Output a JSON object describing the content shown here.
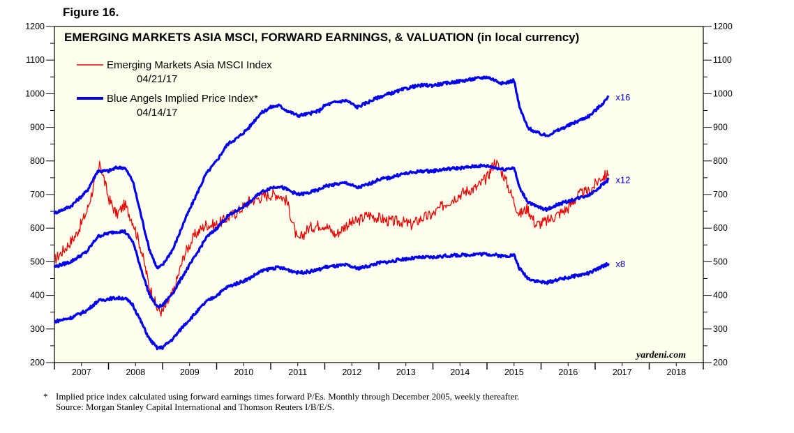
{
  "figure_label": "Figure 16.",
  "footnote": {
    "star": "*",
    "line1": "Implied price index calculated using forward earnings times forward P/Es. Monthly through December 2005, weekly thereafter.",
    "line2": "Source: Morgan Stanley Capital International and Thomson Reuters I/B/E/S."
  },
  "colors": {
    "plot_background": "#ffffee",
    "index_line": "#ee0000",
    "implied_lines": "#0000ee"
  },
  "chart_data": {
    "type": "line",
    "title": "EMERGING MARKETS ASIA MSCI, FORWARD EARNINGS, & VALUATION (in local currency)",
    "watermark": "yardeni.com",
    "ylim": [
      200,
      1200
    ],
    "y_ticks": [
      "200",
      "300",
      "400",
      "500",
      "600",
      "700",
      "800",
      "900",
      "1000",
      "1100",
      "1200"
    ],
    "xlim": [
      2007,
      2019
    ],
    "x_tick_labels": [
      "2007",
      "2008",
      "2009",
      "2010",
      "2011",
      "2012",
      "2013",
      "2014",
      "2015",
      "2016",
      "2017",
      "2018"
    ],
    "legend": [
      {
        "label": "Emerging Markets Asia MSCI Index",
        "date": "04/21/17",
        "color": "#ee0000"
      },
      {
        "label": "Blue Angels Implied Price Index*",
        "date": "04/14/17",
        "color": "#0000ee"
      }
    ],
    "series": [
      {
        "name": "Emerging Markets Asia MSCI Index",
        "color": "#ee0000",
        "x": [
          2007.0,
          2007.2,
          2007.4,
          2007.6,
          2007.75,
          2007.85,
          2008.0,
          2008.15,
          2008.3,
          2008.45,
          2008.6,
          2008.75,
          2008.9,
          2009.0,
          2009.2,
          2009.4,
          2009.6,
          2009.8,
          2010.0,
          2010.2,
          2010.4,
          2010.6,
          2010.8,
          2011.0,
          2011.15,
          2011.3,
          2011.5,
          2011.7,
          2011.9,
          2012.0,
          2012.2,
          2012.4,
          2012.6,
          2012.8,
          2013.0,
          2013.2,
          2013.4,
          2013.6,
          2013.8,
          2014.0,
          2014.2,
          2014.4,
          2014.6,
          2014.8,
          2015.0,
          2015.15,
          2015.3,
          2015.5,
          2015.6,
          2015.75,
          2015.9,
          2016.1,
          2016.3,
          2016.5,
          2016.7,
          2016.9,
          2017.1,
          2017.25
        ],
        "values": [
          505,
          540,
          580,
          650,
          740,
          790,
          690,
          640,
          670,
          620,
          540,
          430,
          360,
          350,
          410,
          520,
          580,
          610,
          610,
          630,
          650,
          680,
          690,
          700,
          700,
          680,
          560,
          600,
          610,
          610,
          580,
          610,
          620,
          640,
          630,
          620,
          620,
          610,
          630,
          640,
          670,
          690,
          710,
          720,
          750,
          800,
          760,
          680,
          640,
          660,
          610,
          620,
          640,
          660,
          700,
          710,
          750,
          760
        ]
      },
      {
        "name": "Implied Price Index x16",
        "label": "x16",
        "color": "#0000ee",
        "x": [
          2007.0,
          2007.3,
          2007.6,
          2007.8,
          2008.0,
          2008.15,
          2008.3,
          2008.45,
          2008.6,
          2008.75,
          2008.9,
          2009.0,
          2009.2,
          2009.4,
          2009.6,
          2009.8,
          2010.0,
          2010.2,
          2010.4,
          2010.6,
          2010.8,
          2011.0,
          2011.15,
          2011.3,
          2011.5,
          2011.7,
          2011.9,
          2012.0,
          2012.2,
          2012.4,
          2012.6,
          2012.8,
          2013.0,
          2013.2,
          2013.4,
          2013.6,
          2013.8,
          2014.0,
          2014.2,
          2014.4,
          2014.6,
          2014.8,
          2015.0,
          2015.15,
          2015.3,
          2015.5,
          2015.6,
          2015.75,
          2015.9,
          2016.1,
          2016.3,
          2016.5,
          2016.7,
          2016.9,
          2017.1,
          2017.25
        ],
        "values": [
          645,
          665,
          710,
          770,
          770,
          780,
          780,
          740,
          640,
          540,
          480,
          490,
          540,
          620,
          690,
          760,
          800,
          850,
          870,
          900,
          940,
          960,
          965,
          950,
          935,
          940,
          950,
          965,
          975,
          980,
          960,
          975,
          990,
          1000,
          1010,
          1020,
          1025,
          1025,
          1030,
          1035,
          1040,
          1045,
          1050,
          1040,
          1030,
          1040,
          960,
          900,
          885,
          875,
          890,
          905,
          920,
          935,
          965,
          990
        ]
      },
      {
        "name": "Implied Price Index x12",
        "label": "x12",
        "color": "#0000ee",
        "x": [
          2007.0,
          2007.3,
          2007.6,
          2007.8,
          2008.0,
          2008.15,
          2008.3,
          2008.45,
          2008.6,
          2008.75,
          2008.9,
          2009.0,
          2009.2,
          2009.4,
          2009.6,
          2009.8,
          2010.0,
          2010.2,
          2010.4,
          2010.6,
          2010.8,
          2011.0,
          2011.15,
          2011.3,
          2011.5,
          2011.7,
          2011.9,
          2012.0,
          2012.2,
          2012.4,
          2012.6,
          2012.8,
          2013.0,
          2013.2,
          2013.4,
          2013.6,
          2013.8,
          2014.0,
          2014.2,
          2014.4,
          2014.6,
          2014.8,
          2015.0,
          2015.15,
          2015.3,
          2015.5,
          2015.6,
          2015.75,
          2015.9,
          2016.1,
          2016.3,
          2016.5,
          2016.7,
          2016.9,
          2017.1,
          2017.25
        ],
        "values": [
          485,
          500,
          530,
          575,
          585,
          590,
          590,
          560,
          480,
          405,
          365,
          370,
          410,
          465,
          515,
          570,
          600,
          635,
          655,
          675,
          705,
          720,
          725,
          715,
          700,
          705,
          715,
          725,
          730,
          735,
          720,
          730,
          745,
          750,
          760,
          765,
          770,
          770,
          775,
          778,
          780,
          785,
          785,
          780,
          775,
          780,
          720,
          680,
          665,
          655,
          670,
          680,
          690,
          700,
          725,
          745
        ]
      },
      {
        "name": "Implied Price Index x8",
        "label": "x8",
        "color": "#0000ee",
        "x": [
          2007.0,
          2007.3,
          2007.6,
          2007.8,
          2008.0,
          2008.15,
          2008.3,
          2008.45,
          2008.6,
          2008.75,
          2008.9,
          2009.0,
          2009.2,
          2009.4,
          2009.6,
          2009.8,
          2010.0,
          2010.2,
          2010.4,
          2010.6,
          2010.8,
          2011.0,
          2011.15,
          2011.3,
          2011.5,
          2011.7,
          2011.9,
          2012.0,
          2012.2,
          2012.4,
          2012.6,
          2012.8,
          2013.0,
          2013.2,
          2013.4,
          2013.6,
          2013.8,
          2014.0,
          2014.2,
          2014.4,
          2014.6,
          2014.8,
          2015.0,
          2015.15,
          2015.3,
          2015.5,
          2015.6,
          2015.75,
          2015.9,
          2016.1,
          2016.3,
          2016.5,
          2016.7,
          2016.9,
          2017.1,
          2017.25
        ],
        "values": [
          322,
          333,
          355,
          383,
          390,
          392,
          392,
          372,
          322,
          272,
          243,
          245,
          272,
          312,
          345,
          380,
          400,
          425,
          437,
          450,
          470,
          480,
          483,
          477,
          468,
          470,
          477,
          484,
          487,
          490,
          480,
          487,
          497,
          500,
          507,
          510,
          513,
          513,
          517,
          519,
          520,
          523,
          523,
          520,
          517,
          520,
          480,
          452,
          443,
          437,
          447,
          453,
          460,
          467,
          483,
          495
        ]
      }
    ]
  }
}
